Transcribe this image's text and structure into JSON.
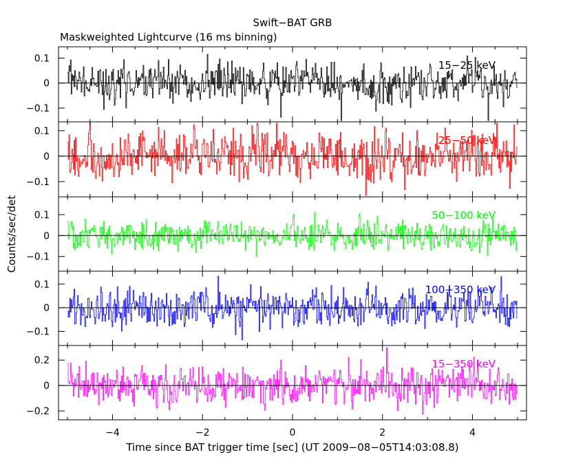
{
  "chart_data": {
    "type": "line",
    "title": "Swift−BAT GRB",
    "subtitle": "Maskweighted Lightcurve (16 ms binning)",
    "xlabel": "Time since BAT trigger time [sec] (UT 2009−08−05T14:03:08.8)",
    "ylabel": "Counts/sec/det",
    "xlim": [
      -5.2,
      5.2
    ],
    "x_ticks": [
      -4,
      -2,
      0,
      2,
      4
    ],
    "x_tick_labels": [
      "−4",
      "−2",
      "0",
      "2",
      "4"
    ],
    "bin_width_sec": 0.016,
    "x_start": -5.0,
    "x_end": 5.0,
    "panels": [
      {
        "band": "15−25 keV",
        "color": "#000000",
        "ylim": [
          -0.155,
          0.145
        ],
        "y_ticks": [
          -0.1,
          0,
          0.1
        ],
        "y_tick_labels": [
          "−0.1",
          "0",
          "0.1"
        ],
        "noise_sigma": 0.045
      },
      {
        "band": "25−50 keV",
        "color": "#ff0000",
        "ylim": [
          -0.16,
          0.135
        ],
        "y_ticks": [
          -0.1,
          0,
          0.1
        ],
        "y_tick_labels": [
          "−0.1",
          "0",
          "0.1"
        ],
        "noise_sigma": 0.055
      },
      {
        "band": "50−100 keV",
        "color": "#00ff00",
        "ylim": [
          -0.17,
          0.185
        ],
        "y_ticks": [
          -0.1,
          0,
          0.1
        ],
        "y_tick_labels": [
          "−0.1",
          "0",
          "0.1"
        ],
        "noise_sigma": 0.045
      },
      {
        "band": "100−350 keV",
        "color": "#0000ff",
        "ylim": [
          -0.16,
          0.155
        ],
        "y_ticks": [
          -0.1,
          0,
          0.1
        ],
        "y_tick_labels": [
          "−0.1",
          "0",
          "0.1"
        ],
        "noise_sigma": 0.05
      },
      {
        "band": "15−350 keV",
        "color": "#ff00ff",
        "ylim": [
          -0.27,
          0.315
        ],
        "y_ticks": [
          -0.2,
          0,
          0.2
        ],
        "y_tick_labels": [
          "−0.2",
          "0",
          "0.2"
        ],
        "noise_sigma": 0.09
      }
    ]
  }
}
